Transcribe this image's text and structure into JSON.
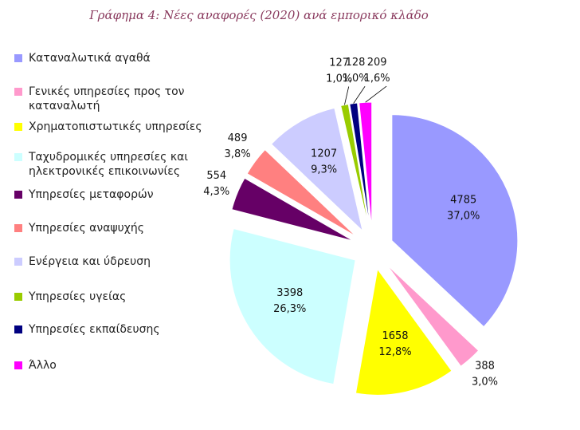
{
  "chart_data": {
    "type": "pie",
    "title": "Γράφημα 4: Νέες αναφορές (2020) ανά εμπορικό κλάδο",
    "categories": [
      "Καταναλωτικά αγαθά",
      "Γενικές υπηρεσίες προς τον καταναλωτή",
      "Χρηματοπιστωτικές υπηρεσίες",
      "Ταχυδρομικές υπηρεσίες και ηλεκτρονικές επικοινωνίες",
      "Υπηρεσίες μεταφορών",
      "Υπηρεσίες αναψυχής",
      "Ενέργεια και ύδρευση",
      "Υπηρεσίες υγείας",
      "Υπηρεσίες εκπαίδευσης",
      "Άλλο"
    ],
    "values": [
      4785,
      388,
      1658,
      3398,
      554,
      489,
      1207,
      127,
      128,
      209
    ],
    "percent_labels": [
      "37,0%",
      "3,0%",
      "12,8%",
      "26,3%",
      "4,3%",
      "3,8%",
      "9,3%",
      "1,0%",
      "1,0%",
      "1,6%"
    ],
    "colors": [
      "#9999ff",
      "#ff99cc",
      "#ffff00",
      "#ccffff",
      "#660066",
      "#ff8080",
      "#ccccff",
      "#99cc00",
      "#000080",
      "#ff00ff"
    ]
  }
}
